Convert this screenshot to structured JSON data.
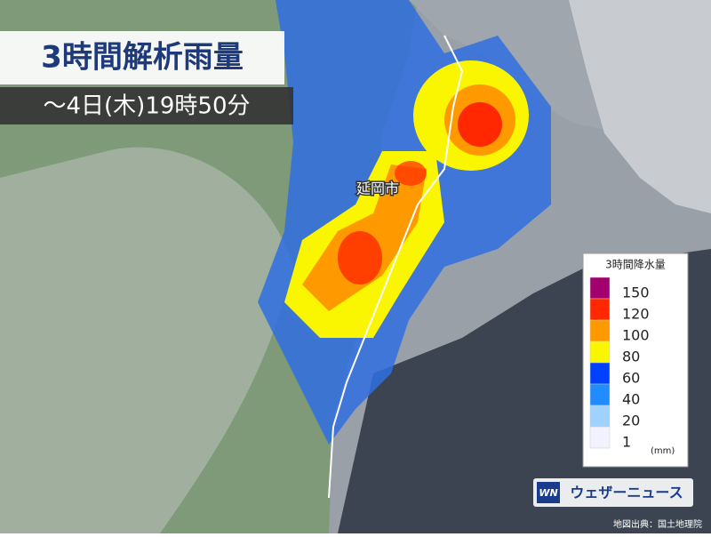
{
  "header": {
    "title": "3時間解析雨量",
    "subtitle": "〜4日(木)19時50分"
  },
  "map": {
    "city_label": "延岡市",
    "credit": "地図出典：国土地理院"
  },
  "legend": {
    "title": "3時間降水量",
    "unit": "(mm)",
    "entries": [
      {
        "value": 150,
        "color": "#a3006f"
      },
      {
        "value": 120,
        "color": "#ff2800"
      },
      {
        "value": 100,
        "color": "#ff9900"
      },
      {
        "value": 80,
        "color": "#faf500"
      },
      {
        "value": 60,
        "color": "#0041ff"
      },
      {
        "value": 40,
        "color": "#218cff"
      },
      {
        "value": 20,
        "color": "#a0d2ff"
      },
      {
        "value": 1,
        "color": "#f2f2ff"
      }
    ]
  },
  "logo": {
    "mark": "WN",
    "name": "ウェザーニュース"
  }
}
